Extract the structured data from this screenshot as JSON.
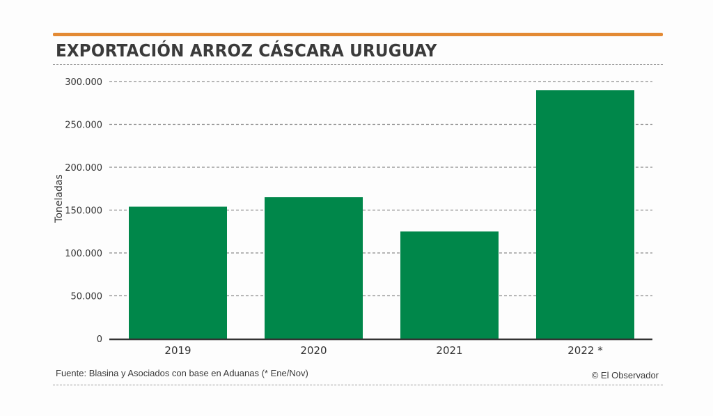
{
  "chart_data": {
    "type": "bar",
    "title": "EXPORTACIÓN ARROZ CÁSCARA URUGUAY",
    "xlabel": "",
    "ylabel": "Toneladas",
    "categories": [
      "2019",
      "2020",
      "2021",
      "2022 *"
    ],
    "values": [
      154000,
      165000,
      125000,
      290000
    ],
    "ylim": [
      0,
      300000
    ],
    "yticks": [
      0,
      50000,
      100000,
      150000,
      200000,
      250000,
      300000
    ],
    "ytick_labels": [
      "0",
      "50.000",
      "100.000",
      "150.000",
      "200.000",
      "250.000",
      "300.000"
    ],
    "grid": true,
    "legend": "none",
    "source": "Fuente: Blasina y Asociados con base en Aduanas (* Ene/Nov)",
    "credit": "© El Observador"
  },
  "colors": {
    "bar": "#00874a",
    "accent": "#e38a34",
    "grid": "#8c8c8c",
    "axis": "#333333"
  }
}
